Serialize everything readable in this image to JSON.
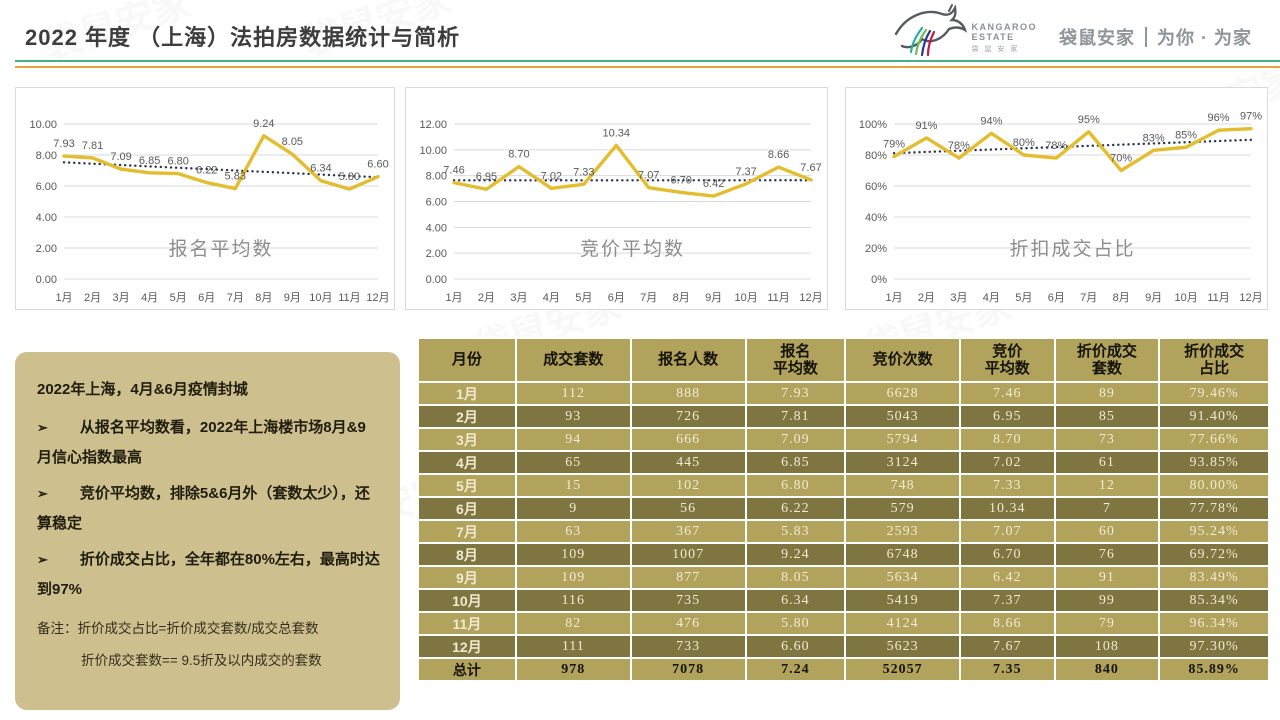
{
  "header": {
    "title": "2022 年度 （上海）法拍房数据统计与简析",
    "brand": {
      "name_en_line1": "KANGAROO",
      "name_en_line2": "ESTATE",
      "name_cn_small": "袋 鼠 安 家",
      "tagline_cn": "袋鼠安家",
      "tagline_slogan": "为你 · 为家"
    }
  },
  "watermark_text": "袋鼠安家",
  "colors": {
    "line_yellow": "#e4bd2e",
    "trend_navy": "#2a3350",
    "grid": "#d9d9d9",
    "green_rule": "#43b183",
    "orange_rule": "#e8a33d",
    "panel_bg": "#cdbf8e",
    "row_light": "#b1a25c",
    "row_dark": "#7e7541"
  },
  "chart_data": [
    {
      "type": "line",
      "title": "报名平均数",
      "categories": [
        "1月",
        "2月",
        "3月",
        "4月",
        "5月",
        "6月",
        "7月",
        "8月",
        "9月",
        "10月",
        "11月",
        "12月"
      ],
      "values": [
        7.93,
        7.81,
        7.09,
        6.85,
        6.8,
        6.22,
        5.83,
        9.24,
        8.05,
        6.34,
        5.8,
        6.6
      ],
      "labels": [
        "7.93",
        "7.81",
        "7.09",
        "6.85",
        "6.80",
        "6.22",
        "5.83",
        "9.24",
        "8.05",
        "6.34",
        "5.80",
        "6.60"
      ],
      "ylim": [
        0,
        10
      ],
      "yticks": [
        0,
        2,
        4,
        6,
        8,
        10
      ],
      "ytick_labels": [
        "0.00",
        "2.00",
        "4.00",
        "6.00",
        "8.00",
        "10.00"
      ],
      "grid": true,
      "trendline": true,
      "legend": "none"
    },
    {
      "type": "line",
      "title": "竞价平均数",
      "categories": [
        "1月",
        "2月",
        "3月",
        "4月",
        "5月",
        "6月",
        "7月",
        "8月",
        "9月",
        "10月",
        "11月",
        "12月"
      ],
      "values": [
        7.46,
        6.95,
        8.7,
        7.02,
        7.33,
        10.34,
        7.07,
        6.7,
        6.42,
        7.37,
        8.66,
        7.67
      ],
      "labels": [
        "7.46",
        "6.95",
        "8.70",
        "7.02",
        "7.33",
        "10.34",
        "7.07",
        "6.70",
        "6.42",
        "7.37",
        "8.66",
        "7.67"
      ],
      "ylim": [
        0,
        12
      ],
      "yticks": [
        0,
        2,
        4,
        6,
        8,
        10,
        12
      ],
      "ytick_labels": [
        "0.00",
        "2.00",
        "4.00",
        "6.00",
        "8.00",
        "10.00",
        "12.00"
      ],
      "grid": true,
      "trendline": true,
      "legend": "none"
    },
    {
      "type": "line",
      "title": "折扣成交占比",
      "categories": [
        "1月",
        "2月",
        "3月",
        "4月",
        "5月",
        "6月",
        "7月",
        "8月",
        "9月",
        "10月",
        "11月",
        "12月"
      ],
      "values": [
        79,
        91,
        78,
        94,
        80,
        78,
        95,
        70,
        83,
        85,
        96,
        97
      ],
      "labels": [
        "79%",
        "91%",
        "78%",
        "94%",
        "80%",
        "78%",
        "95%",
        "70%",
        "83%",
        "85%",
        "96%",
        "97%"
      ],
      "ylim": [
        0,
        100
      ],
      "yticks": [
        0,
        20,
        40,
        60,
        80,
        100
      ],
      "ytick_labels": [
        "0%",
        "20%",
        "40%",
        "60%",
        "80%",
        "100%"
      ],
      "grid": true,
      "trendline": true,
      "legend": "none"
    }
  ],
  "notes": {
    "intro": "2022年上海，4月&6月疫情封城",
    "bullet_marker": "➢",
    "bullets": [
      "从报名平均数看，2022年上海楼市场8月&9月信心指数最高",
      "竞价平均数，排除5&6月外（套数太少），还算稳定",
      "折价成交占比，全年都在80%左右，最高时达到97%"
    ],
    "remark1": "备注：折价成交占比=折价成交套数/成交总套数",
    "remark2": "折价成交套数== 9.5折及以内成交的套数"
  },
  "table": {
    "headers": [
      "月份",
      "成交套数",
      "报名人数",
      "报名\n平均数",
      "竞价次数",
      "竞价\n平均数",
      "折价成交\n套数",
      "折价成交\n占比"
    ],
    "rows": [
      [
        "1月",
        "112",
        "888",
        "7.93",
        "6628",
        "7.46",
        "89",
        "79.46%"
      ],
      [
        "2月",
        "93",
        "726",
        "7.81",
        "5043",
        "6.95",
        "85",
        "91.40%"
      ],
      [
        "3月",
        "94",
        "666",
        "7.09",
        "5794",
        "8.70",
        "73",
        "77.66%"
      ],
      [
        "4月",
        "65",
        "445",
        "6.85",
        "3124",
        "7.02",
        "61",
        "93.85%"
      ],
      [
        "5月",
        "15",
        "102",
        "6.80",
        "748",
        "7.33",
        "12",
        "80.00%"
      ],
      [
        "6月",
        "9",
        "56",
        "6.22",
        "579",
        "10.34",
        "7",
        "77.78%"
      ],
      [
        "7月",
        "63",
        "367",
        "5.83",
        "2593",
        "7.07",
        "60",
        "95.24%"
      ],
      [
        "8月",
        "109",
        "1007",
        "9.24",
        "6748",
        "6.70",
        "76",
        "69.72%"
      ],
      [
        "9月",
        "109",
        "877",
        "8.05",
        "5634",
        "6.42",
        "91",
        "83.49%"
      ],
      [
        "10月",
        "116",
        "735",
        "6.34",
        "5419",
        "7.37",
        "99",
        "85.34%"
      ],
      [
        "11月",
        "82",
        "476",
        "5.80",
        "4124",
        "8.66",
        "79",
        "96.34%"
      ],
      [
        "12月",
        "111",
        "733",
        "6.60",
        "5623",
        "7.67",
        "108",
        "97.30%"
      ]
    ],
    "total_row": [
      "总计",
      "978",
      "7078",
      "7.24",
      "52057",
      "7.35",
      "840",
      "85.89%"
    ]
  }
}
